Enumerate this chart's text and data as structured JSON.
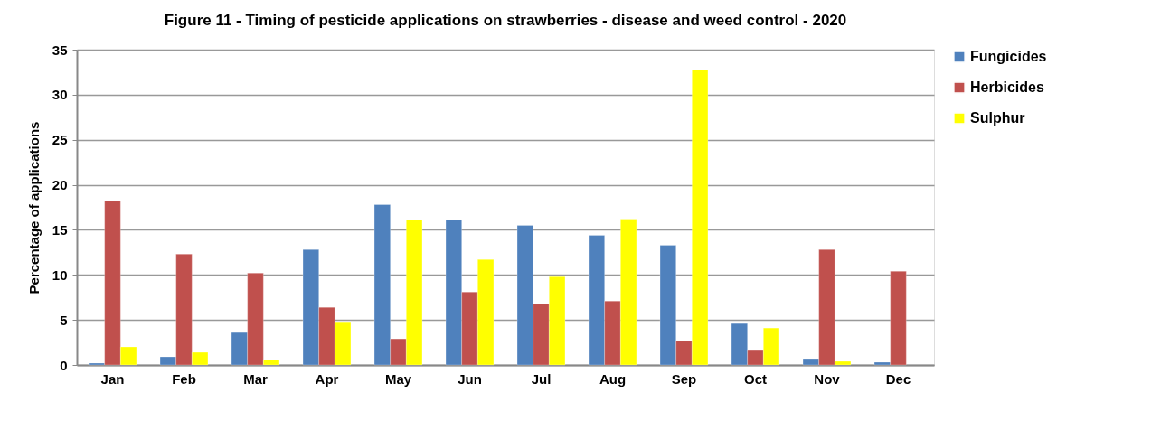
{
  "chart_data": {
    "type": "bar",
    "title": "Figure 11 - Timing of pesticide applications  on strawberries - disease and weed control  - 2020",
    "ylabel": "Percentage of applications",
    "categories": [
      "Jan",
      "Feb",
      "Mar",
      "Apr",
      "May",
      "Jun",
      "Jul",
      "Aug",
      "Sep",
      "Oct",
      "Nov",
      "Dec"
    ],
    "series": [
      {
        "name": "Fungicides",
        "color": "#4f81bd",
        "values": [
          0.2,
          0.9,
          3.6,
          12.8,
          17.8,
          16.1,
          15.5,
          14.4,
          13.3,
          4.6,
          0.7,
          0.3
        ]
      },
      {
        "name": "Herbicides",
        "color": "#c0504d",
        "values": [
          18.2,
          12.3,
          10.2,
          6.4,
          2.9,
          8.1,
          6.8,
          7.1,
          2.7,
          1.7,
          12.8,
          10.4
        ]
      },
      {
        "name": "Sulphur",
        "color": "#ffff00",
        "values": [
          2.0,
          1.4,
          0.6,
          4.7,
          16.1,
          11.7,
          9.8,
          16.2,
          32.8,
          4.1,
          0.4,
          null
        ]
      }
    ],
    "ylim": [
      0,
      35
    ],
    "yticks": [
      0,
      5,
      10,
      15,
      20,
      25,
      30,
      35
    ],
    "grid": "y",
    "legend": "right"
  }
}
